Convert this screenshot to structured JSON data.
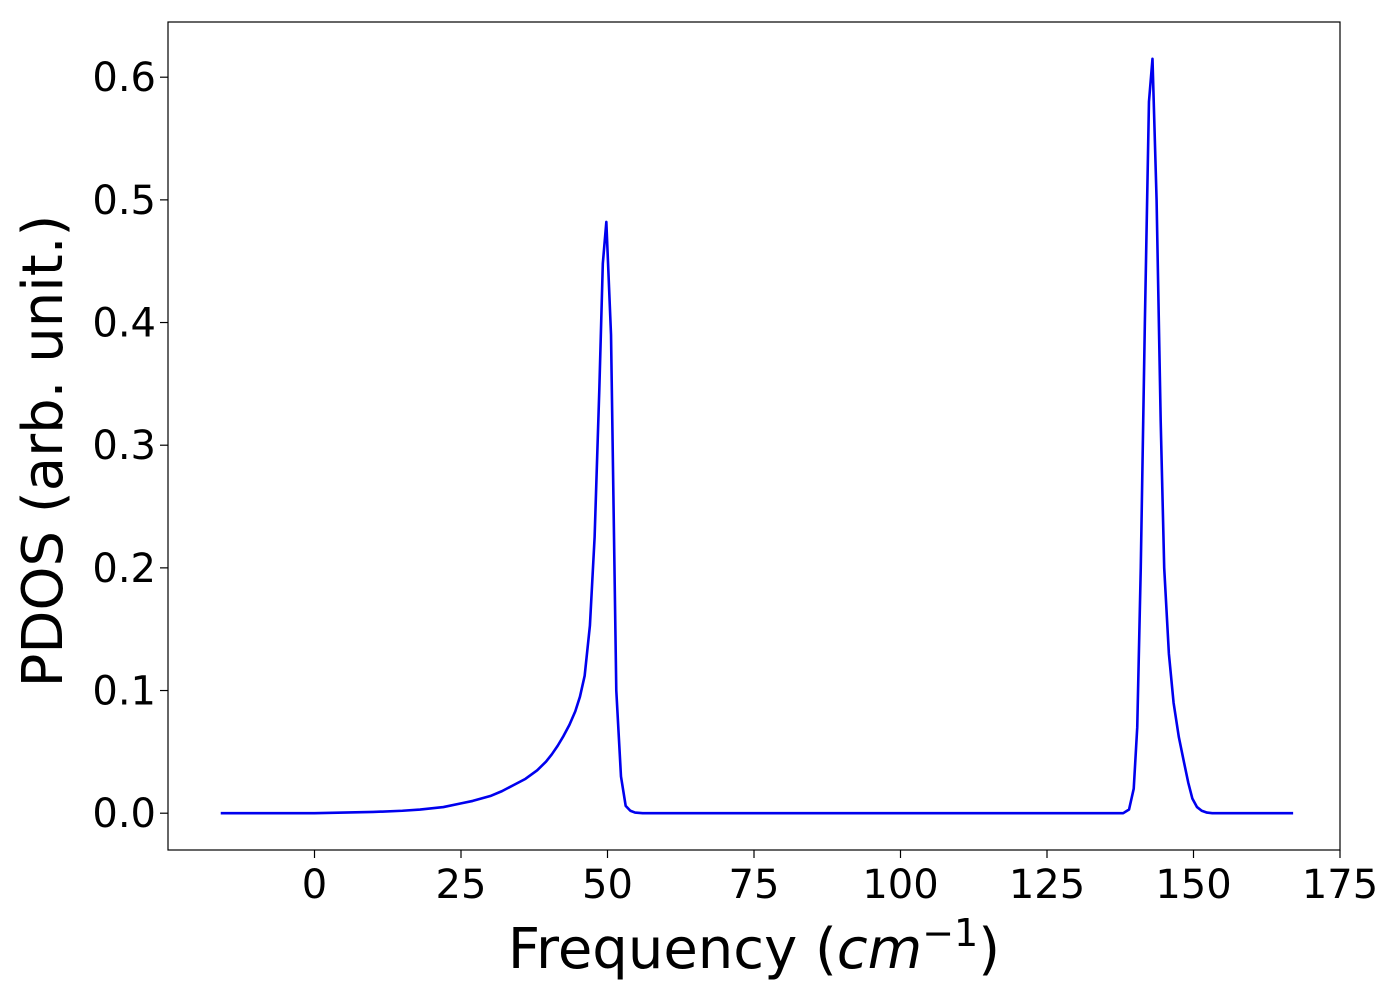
{
  "chart_data": {
    "type": "line",
    "title": "",
    "xlabel": "Frequency (",
    "xlabel_math": "cm",
    "xlabel_sup": "−1",
    "xlabel_close": ")",
    "ylabel": "PDOS (arb. unit.)",
    "xlim": [
      -25,
      175
    ],
    "ylim": [
      -0.03,
      0.645
    ],
    "xticks": [
      0,
      25,
      50,
      75,
      100,
      125,
      150,
      175
    ],
    "xtick_labels": [
      "0",
      "25",
      "50",
      "75",
      "100",
      "125",
      "150",
      "175"
    ],
    "yticks": [
      0.0,
      0.1,
      0.2,
      0.3,
      0.4,
      0.5,
      0.6
    ],
    "ytick_labels": [
      "0.0",
      "0.1",
      "0.2",
      "0.3",
      "0.4",
      "0.5",
      "0.6"
    ],
    "grid": false,
    "legend": "none",
    "series": [
      {
        "color": "#0000ee",
        "x": [
          -16,
          -10,
          -5,
          0,
          5,
          10,
          15,
          18,
          20,
          22,
          25,
          27,
          30,
          32,
          34,
          36,
          38,
          39.5,
          40.5,
          41.5,
          42.5,
          43.5,
          44.5,
          45.3,
          46.1,
          47.0,
          47.8,
          48.6,
          49.2,
          49.8,
          50.6,
          51.5,
          52.3,
          53.1,
          53.9,
          54.7,
          56,
          60,
          80,
          100,
          120,
          130,
          137,
          138,
          139,
          139.8,
          140.4,
          141.0,
          141.7,
          142.4,
          143.0,
          143.7,
          144.4,
          145.0,
          145.8,
          146.6,
          147.5,
          148.4,
          149.1,
          149.8,
          150.6,
          151.4,
          152.3,
          153.2,
          154.0,
          155,
          157,
          162,
          167
        ],
        "y": [
          0.0,
          0.0,
          0.0,
          0.0,
          0.0005,
          0.001,
          0.002,
          0.003,
          0.004,
          0.005,
          0.008,
          0.01,
          0.014,
          0.018,
          0.023,
          0.028,
          0.035,
          0.042,
          0.048,
          0.055,
          0.063,
          0.072,
          0.083,
          0.095,
          0.112,
          0.153,
          0.225,
          0.345,
          0.448,
          0.482,
          0.39,
          0.1,
          0.03,
          0.006,
          0.002,
          0.0005,
          0.0,
          0.0,
          0.0,
          0.0,
          0.0,
          0.0,
          0.0,
          0.0,
          0.003,
          0.02,
          0.07,
          0.2,
          0.4,
          0.58,
          0.615,
          0.5,
          0.32,
          0.2,
          0.13,
          0.09,
          0.062,
          0.041,
          0.025,
          0.012,
          0.005,
          0.002,
          0.0005,
          0.0,
          0.0,
          0.0,
          0.0,
          0.0,
          0.0
        ]
      }
    ]
  }
}
